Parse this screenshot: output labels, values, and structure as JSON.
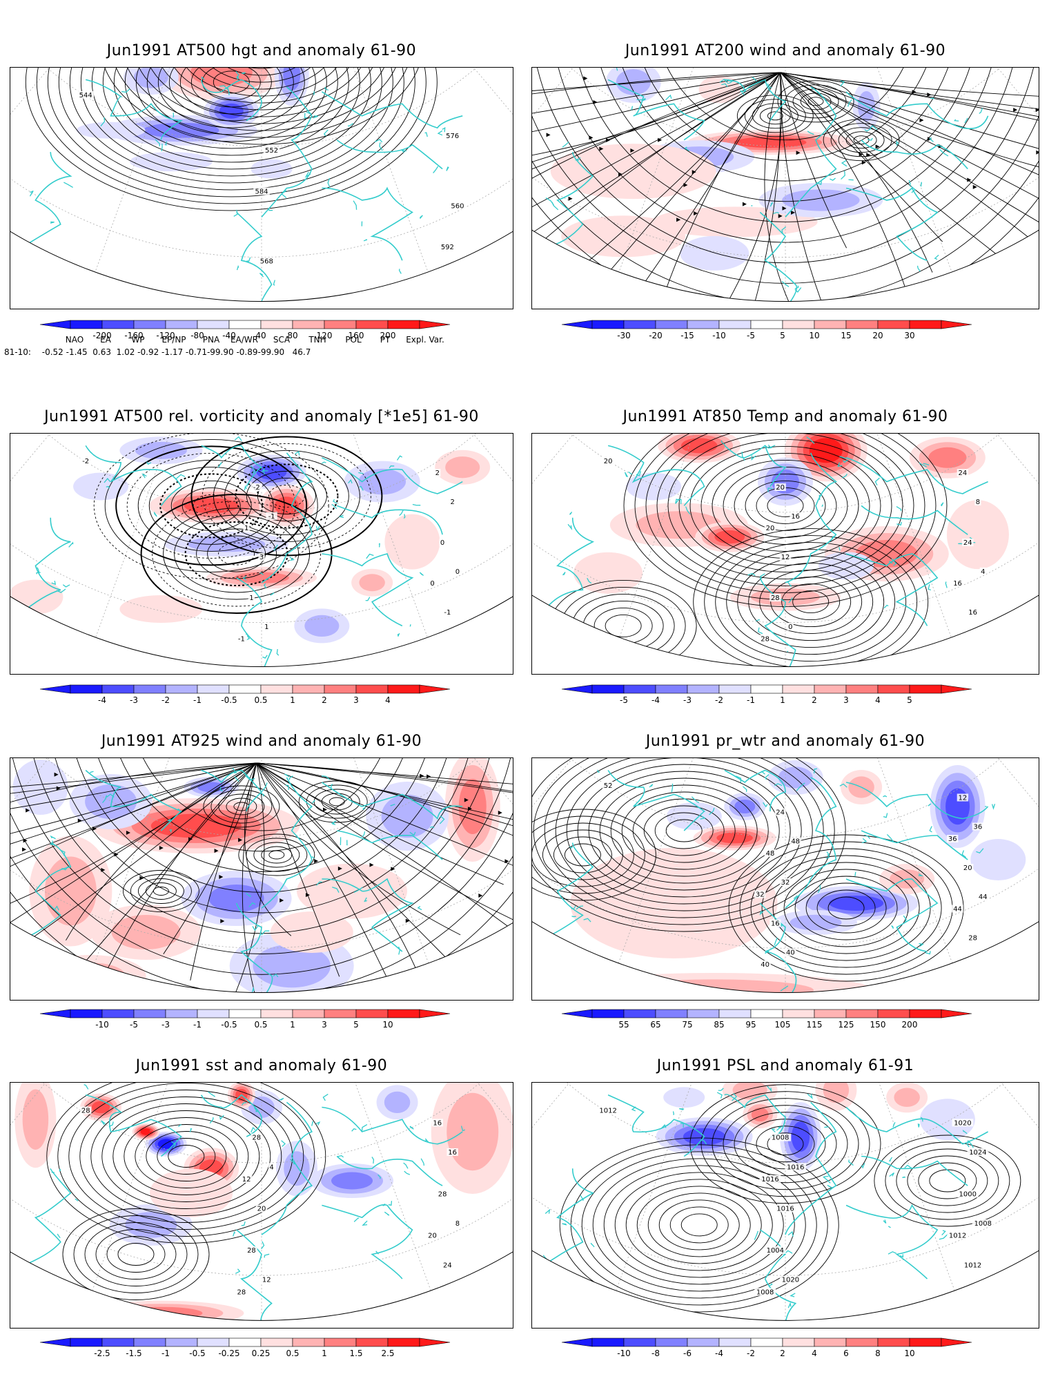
{
  "colors": {
    "neg": [
      "#1a1aff",
      "#4d4dff",
      "#8080ff",
      "#b3b3ff",
      "#e0e0ff"
    ],
    "pos": [
      "#ffe0e0",
      "#ffb3b3",
      "#ff8080",
      "#ff4d4d",
      "#ff1a1a"
    ],
    "coast": "#33cccc",
    "contour": "#000000",
    "grid": "#aaaaaa"
  },
  "panels": [
    {
      "id": "p1",
      "title": "Jun1991 AT500 hgt and anomaly 61-90",
      "colorbar": [
        "-200",
        "-160",
        "-120",
        "-80",
        "-40",
        "40",
        "80",
        "120",
        "160",
        "200"
      ],
      "contour_labels": [
        "544",
        "552",
        "560",
        "568",
        "576",
        "584",
        "592"
      ],
      "style": "hgt"
    },
    {
      "id": "p2",
      "title": "Jun1991 AT200 wind and anomaly 61-90",
      "colorbar": [
        "-30",
        "-20",
        "-15",
        "-10",
        "-5",
        "5",
        "10",
        "15",
        "20",
        "30"
      ],
      "contour_labels": [],
      "style": "wind200"
    },
    {
      "id": "p3",
      "title": "Jun1991 AT500 rel. vorticity and anomaly [*1e5] 61-90",
      "colorbar": [
        "-4",
        "-3",
        "-2",
        "-1",
        "-0.5",
        "0.5",
        "1",
        "2",
        "3",
        "4"
      ],
      "contour_labels": [
        "-2",
        "-1",
        "0",
        "1",
        "2",
        "3",
        "-1",
        "-2",
        "0",
        "1",
        "2",
        "1",
        "0",
        "-1"
      ],
      "style": "vort"
    },
    {
      "id": "p4",
      "title": "Jun1991 AT850 Temp and anomaly 61-90",
      "colorbar": [
        "-5",
        "-4",
        "-3",
        "-2",
        "-1",
        "1",
        "2",
        "3",
        "4",
        "5"
      ],
      "contour_labels": [
        "20",
        "16",
        "4",
        "0",
        "8",
        "12",
        "16",
        "20",
        "24",
        "28",
        "24",
        "20",
        "16",
        "28"
      ],
      "style": "t850"
    },
    {
      "id": "p5",
      "title": "Jun1991 AT925 wind and anomaly 61-90",
      "colorbar": [
        "-10",
        "-5",
        "-3",
        "-1",
        "-0.5",
        "0.5",
        "1",
        "3",
        "5",
        "10"
      ],
      "contour_labels": [],
      "style": "wind925"
    },
    {
      "id": "p6",
      "title": "Jun1991 pr_wtr and anomaly 61-90",
      "colorbar": [
        "55",
        "65",
        "75",
        "85",
        "95",
        "105",
        "115",
        "125",
        "150",
        "200"
      ],
      "contour_labels": [
        "52",
        "48",
        "44",
        "40",
        "36",
        "32",
        "28",
        "24",
        "20",
        "16",
        "12",
        "48",
        "44",
        "40",
        "36",
        "32"
      ],
      "style": "prwtr"
    },
    {
      "id": "p7",
      "title": "Jun1991 sst and anomaly 61-90",
      "colorbar": [
        "-2.5",
        "-1.5",
        "-1",
        "-0.5",
        "-0.25",
        "0.25",
        "0.5",
        "1",
        "1.5",
        "2.5"
      ],
      "contour_labels": [
        "28",
        "4",
        "8",
        "12",
        "16",
        "20",
        "24",
        "28",
        "28",
        "28",
        "16",
        "12",
        "20",
        "28"
      ],
      "style": "sst"
    },
    {
      "id": "p8",
      "title": "Jun1991 PSL and anomaly 61-91",
      "colorbar": [
        "-10",
        "-8",
        "-6",
        "-4",
        "-2",
        "2",
        "4",
        "6",
        "8",
        "10"
      ],
      "contour_labels": [
        "1012",
        "1016",
        "1008",
        "1020",
        "1024",
        "1016",
        "1012",
        "1008",
        "1000",
        "1004",
        "1020",
        "1016",
        "1012",
        "1008"
      ],
      "style": "psl"
    }
  ],
  "indices": {
    "headers": [
      "NAO",
      "EA",
      "WP",
      "EP/NP",
      "PNA",
      "EA/WR",
      "SCA",
      "TNH",
      "POL",
      "PT",
      "Expl. Var."
    ],
    "row_label": "81-10:",
    "values": "-0.52 -1.45  0.63  1.02 -0.92 -1.17 -0.71-99.90 -0.89-99.90   46.7"
  }
}
